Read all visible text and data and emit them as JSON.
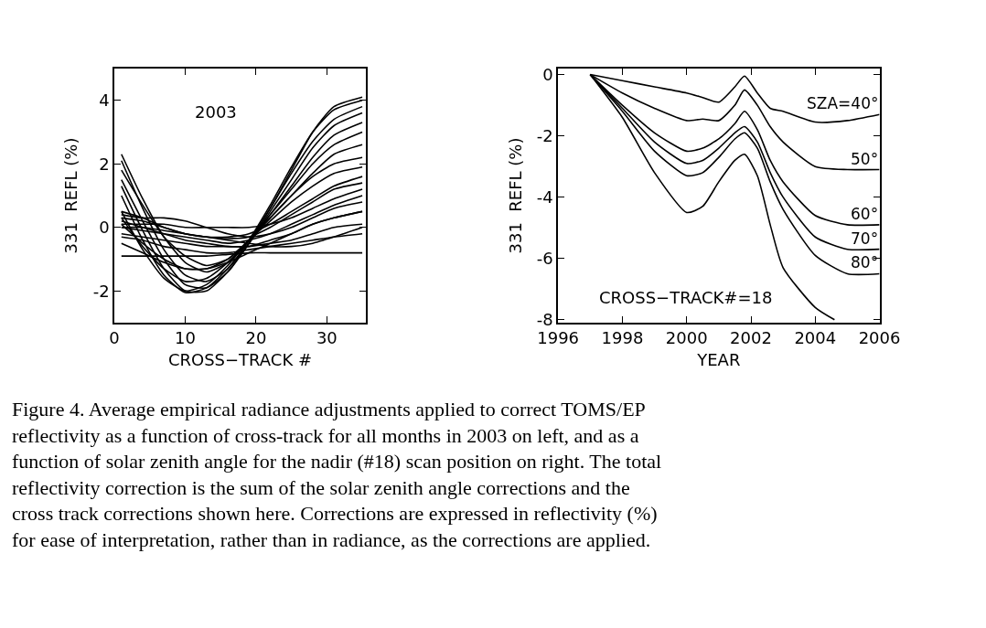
{
  "chart_data": [
    {
      "type": "line",
      "xlabel": "CROSS−TRACK #",
      "ylabel": "331  REFL (%)",
      "x": [
        1,
        4,
        7,
        10,
        13,
        16,
        19,
        22,
        25,
        28,
        31,
        35
      ],
      "xlim": [
        0,
        35.5
      ],
      "xticks": [
        0,
        10,
        20,
        30
      ],
      "ylim": [
        -3,
        5
      ],
      "yticks": [
        -2,
        0,
        2,
        4
      ],
      "marker": "none",
      "line_style": "solid",
      "annotations": [
        "2003",
        "Figure 4. Average empirical radiance adjustments applied to correct TOMS/EP reflectivity as a function of cross-track for all months in 2003 on left, and as a function of solar zenith angle for the nadir (#18) scan position on right. The total reflectivity correction is the sum of the solar zenith angle corrections and the cross track corrections shown here. Corrections are expressed in reflectivity (%) for ease of interpretation, rather than in radiance, as the corrections are applied."
      ],
      "series": [
        {
          "color": "#000000",
          "values": [
            2.3,
            0.9,
            -0.3,
            -1.1,
            -1.4,
            -1.1,
            -0.4,
            0.6,
            1.8,
            3.0,
            3.8,
            4.1
          ]
        },
        {
          "color": "#000000",
          "values": [
            2.1,
            0.6,
            -0.7,
            -1.5,
            -1.7,
            -1.3,
            -0.4,
            0.7,
            1.9,
            3.0,
            3.7,
            4.0
          ]
        },
        {
          "color": "#000000",
          "values": [
            1.5,
            0.2,
            -1.0,
            -1.8,
            -1.9,
            -1.4,
            -0.5,
            0.6,
            1.7,
            2.7,
            3.4,
            3.8
          ]
        },
        {
          "color": "#000000",
          "values": [
            1.3,
            -0.1,
            -1.3,
            -2.0,
            -2.0,
            -1.4,
            -0.5,
            0.5,
            1.5,
            2.5,
            3.2,
            3.6
          ]
        },
        {
          "color": "#000000",
          "values": [
            1.0,
            -0.4,
            -1.5,
            -2.05,
            -1.9,
            -1.3,
            -0.5,
            0.4,
            1.3,
            2.2,
            2.9,
            3.3
          ]
        },
        {
          "color": "#000000",
          "values": [
            0.5,
            -0.7,
            -1.6,
            -2.0,
            -1.8,
            -1.2,
            -0.4,
            0.4,
            1.2,
            2.0,
            2.6,
            3.0
          ]
        },
        {
          "color": "#000000",
          "values": [
            0.3,
            -0.6,
            -1.3,
            -1.7,
            -1.6,
            -1.1,
            -0.4,
            0.3,
            1.0,
            1.7,
            2.3,
            2.6
          ]
        },
        {
          "color": "#000000",
          "values": [
            1.8,
            0.7,
            -0.3,
            -0.9,
            -1.2,
            -1.0,
            -0.4,
            0.3,
            1.0,
            1.6,
            2.0,
            2.2
          ]
        },
        {
          "color": "#000000",
          "values": [
            0.1,
            -0.5,
            -1.0,
            -1.3,
            -1.3,
            -1.0,
            -0.4,
            0.2,
            0.8,
            1.3,
            1.7,
            1.9
          ]
        },
        {
          "color": "#000000",
          "values": [
            0.5,
            0.3,
            0.0,
            -0.2,
            -0.3,
            -0.3,
            -0.2,
            0.1,
            0.5,
            0.9,
            1.3,
            1.6
          ]
        },
        {
          "color": "#000000",
          "values": [
            0.3,
            0.2,
            0.0,
            -0.2,
            -0.3,
            -0.35,
            -0.3,
            0.0,
            0.4,
            0.8,
            1.2,
            1.4
          ]
        },
        {
          "color": "#000000",
          "values": [
            0.1,
            0.1,
            0.1,
            0.0,
            0.0,
            0.0,
            0.0,
            0.1,
            0.3,
            0.6,
            0.9,
            1.2
          ]
        },
        {
          "color": "#000000",
          "values": [
            0.0,
            -0.1,
            -0.2,
            -0.3,
            -0.4,
            -0.5,
            -0.4,
            -0.2,
            0.1,
            0.4,
            0.7,
            1.0
          ]
        },
        {
          "color": "#000000",
          "values": [
            0.4,
            0.3,
            0.3,
            0.2,
            0.0,
            -0.2,
            -0.3,
            -0.2,
            0.0,
            0.3,
            0.6,
            0.8
          ]
        },
        {
          "color": "#000000",
          "values": [
            -0.2,
            -0.3,
            -0.4,
            -0.5,
            -0.6,
            -0.6,
            -0.6,
            -0.4,
            -0.2,
            0.1,
            0.3,
            0.5
          ]
        },
        {
          "color": "#000000",
          "values": [
            0.2,
            0.0,
            -0.2,
            -0.4,
            -0.5,
            -0.6,
            -0.6,
            -0.5,
            -0.4,
            -0.2,
            0.0,
            0.1
          ]
        },
        {
          "color": "#000000",
          "values": [
            -0.3,
            -0.4,
            -0.6,
            -0.7,
            -0.8,
            -0.8,
            -0.7,
            -0.6,
            -0.5,
            -0.4,
            -0.3,
            -0.2
          ]
        },
        {
          "color": "#000000",
          "values": [
            -0.9,
            -0.9,
            -0.9,
            -0.9,
            -0.9,
            -0.85,
            -0.8,
            -0.8,
            -0.8,
            -0.8,
            -0.8,
            -0.8
          ]
        },
        {
          "color": "#000000",
          "values": [
            -0.5,
            -0.8,
            -1.1,
            -1.3,
            -1.3,
            -1.1,
            -0.8,
            -0.5,
            -0.2,
            0.1,
            0.3,
            0.5
          ]
        },
        {
          "color": "#000000",
          "values": [
            0.0,
            0.0,
            -0.1,
            -0.2,
            -0.3,
            -0.4,
            -0.5,
            -0.6,
            -0.6,
            -0.5,
            -0.3,
            0.0
          ]
        }
      ]
    },
    {
      "type": "line",
      "xlabel": "YEAR",
      "ylabel": "331  REFL (%)",
      "x": [
        1997,
        1998,
        1999,
        2000,
        2000.5,
        2001,
        2001.5,
        2001.8,
        2002.2,
        2002.6,
        2003,
        2004,
        2005,
        2006
      ],
      "xlim": [
        1996,
        2006
      ],
      "xticks": [
        1996,
        1998,
        2000,
        2002,
        2004,
        2006
      ],
      "ylim": [
        -8.1,
        0.2
      ],
      "yticks": [
        -8,
        -6,
        -4,
        -2,
        0
      ],
      "legend": "right",
      "marker": "none",
      "line_style": "solid",
      "annotations": [
        "CROSS−TRACK#=18"
      ],
      "series": [
        {
          "name": "SZA=40°",
          "color": "#000000",
          "values": [
            0,
            -0.2,
            -0.4,
            -0.6,
            -0.75,
            -0.9,
            -0.4,
            -0.05,
            -0.6,
            -1.1,
            -1.2,
            -1.55,
            -1.5,
            -1.3
          ]
        },
        {
          "name": "50°",
          "color": "#000000",
          "values": [
            0,
            -0.6,
            -1.1,
            -1.5,
            -1.45,
            -1.5,
            -1.0,
            -0.5,
            -1.0,
            -1.7,
            -2.2,
            -3.0,
            -3.1,
            -3.1
          ]
        },
        {
          "name": "60°",
          "color": "#000000",
          "values": [
            0,
            -1.0,
            -1.9,
            -2.5,
            -2.4,
            -2.1,
            -1.6,
            -1.2,
            -1.8,
            -2.8,
            -3.5,
            -4.6,
            -4.9,
            -4.9
          ]
        },
        {
          "name": "70°",
          "color": "#000000",
          "values": [
            0,
            -1.1,
            -2.2,
            -2.9,
            -2.8,
            -2.4,
            -1.9,
            -1.7,
            -2.2,
            -3.2,
            -4.0,
            -5.3,
            -5.7,
            -5.7
          ]
        },
        {
          "name": "80°",
          "color": "#000000",
          "values": [
            0,
            -1.2,
            -2.5,
            -3.3,
            -3.2,
            -2.7,
            -2.1,
            -1.9,
            -2.4,
            -3.5,
            -4.4,
            -5.9,
            -6.5,
            -6.5
          ]
        },
        {
          "color": "#000000",
          "x": [
            1997,
            1998,
            1999,
            2000,
            2000.5,
            2001,
            2001.5,
            2001.8,
            2002.2,
            2002.6,
            2003,
            2004,
            2004.6
          ],
          "values": [
            0,
            -1.4,
            -3.2,
            -4.5,
            -4.3,
            -3.5,
            -2.8,
            -2.6,
            -3.3,
            -4.9,
            -6.3,
            -7.6,
            -8.0
          ]
        }
      ]
    }
  ]
}
